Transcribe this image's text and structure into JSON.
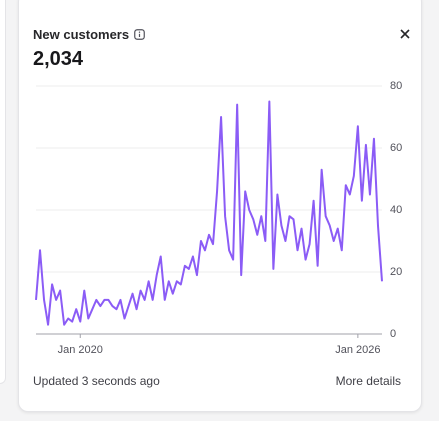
{
  "card": {
    "title": "New customers",
    "value": "2,034",
    "updated": "Updated 3 seconds ago",
    "link": "More details"
  },
  "chart_data": {
    "type": "line",
    "categories": [
      null,
      null,
      null,
      null,
      null,
      null,
      null,
      null,
      null,
      null,
      null,
      "Jan 2020",
      null,
      null,
      null,
      null,
      null,
      null,
      null,
      null,
      null,
      null,
      null,
      null,
      null,
      null,
      null,
      null,
      null,
      null,
      null,
      null,
      null,
      null,
      null,
      null,
      null,
      null,
      null,
      null,
      null,
      null,
      null,
      null,
      null,
      null,
      null,
      null,
      null,
      null,
      null,
      null,
      null,
      null,
      null,
      null,
      null,
      null,
      null,
      null,
      null,
      null,
      null,
      null,
      null,
      null,
      null,
      null,
      null,
      null,
      null,
      null,
      null,
      null,
      null,
      null,
      null,
      null,
      null,
      null,
      "Jan 2026",
      null,
      null,
      null,
      null,
      null,
      null
    ],
    "series": [
      {
        "name": "New customers",
        "color": "#8b5cf6",
        "values": [
          11,
          27,
          11,
          3,
          16,
          11,
          14,
          3,
          5,
          4,
          8,
          4,
          14,
          5,
          8,
          11,
          9,
          11,
          11,
          9,
          8,
          11,
          5,
          9,
          13,
          8,
          14,
          11,
          17,
          11,
          19,
          25,
          11,
          17,
          13,
          17,
          16,
          22,
          21,
          25,
          19,
          30,
          27,
          32,
          29,
          46,
          70,
          38,
          27,
          24,
          74,
          19,
          46,
          40,
          37,
          32,
          38,
          30,
          75,
          21,
          45,
          35,
          30,
          38,
          37,
          27,
          34,
          24,
          29,
          43,
          22,
          53,
          38,
          35,
          30,
          34,
          27,
          48,
          45,
          51,
          67,
          43,
          61,
          45,
          63,
          35,
          17
        ]
      }
    ],
    "ylim": [
      0,
      80
    ],
    "yticks": [
      0,
      20,
      40,
      60,
      80
    ],
    "grid": true
  }
}
